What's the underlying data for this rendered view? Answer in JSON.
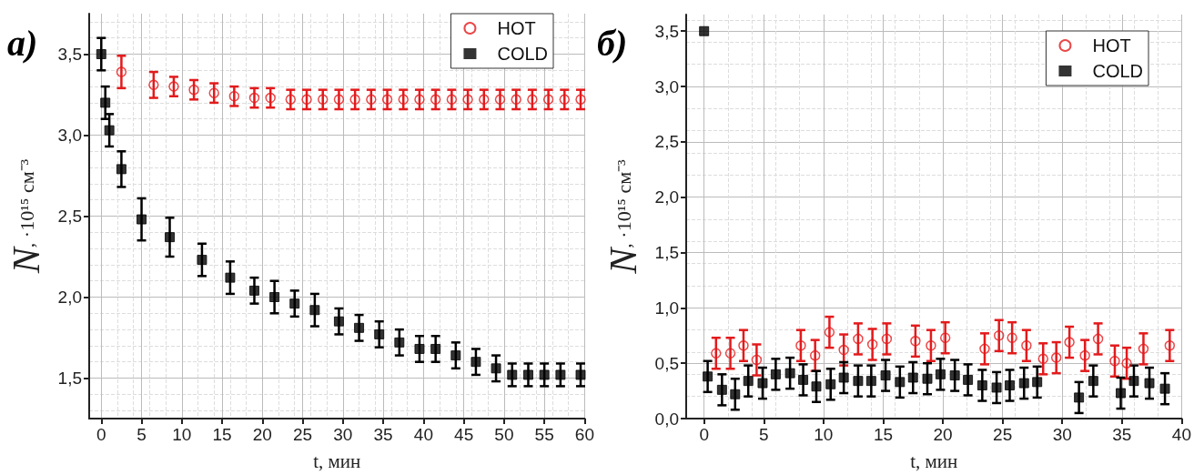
{
  "chart_data": [
    {
      "type": "scatter",
      "annotations": [
        "a)"
      ],
      "xlabel": "t, мин",
      "ylabel": "N, ·10¹⁵ см⁻³",
      "xlim": [
        -1.5,
        60
      ],
      "xticks": [
        0,
        5,
        10,
        15,
        20,
        25,
        30,
        35,
        40,
        45,
        50,
        55,
        60
      ],
      "ylim": [
        1.25,
        3.75
      ],
      "yticks": [
        {
          "value": 1.5,
          "label": "1,5"
        },
        {
          "value": 2.0,
          "label": "2,0"
        },
        {
          "value": 2.5,
          "label": "2,5"
        },
        {
          "value": 3.0,
          "label": "3,0"
        },
        {
          "value": 3.5,
          "label": "3,5"
        }
      ],
      "grid": true,
      "legend": "top right",
      "series": [
        {
          "name": "HOT",
          "color": "#e31a1c",
          "marker": "circle",
          "x": [
            2.5,
            6.5,
            9,
            11.5,
            14,
            16.5,
            19,
            21,
            23.5,
            25.5,
            27.5,
            29.5,
            31.5,
            33.5,
            35.5,
            37.5,
            39.5,
            41.5,
            43.5,
            45.5,
            47.5,
            49.5,
            51.5,
            53.5,
            55.5,
            57.5,
            59.5
          ],
          "values": [
            3.39,
            3.31,
            3.3,
            3.28,
            3.26,
            3.24,
            3.23,
            3.23,
            3.22,
            3.22,
            3.22,
            3.22,
            3.22,
            3.22,
            3.22,
            3.22,
            3.22,
            3.22,
            3.22,
            3.22,
            3.22,
            3.22,
            3.22,
            3.22,
            3.22,
            3.22,
            3.22
          ],
          "errors": [
            0.1,
            0.08,
            0.06,
            0.06,
            0.06,
            0.06,
            0.06,
            0.06,
            0.06,
            0.06,
            0.06,
            0.06,
            0.06,
            0.06,
            0.06,
            0.06,
            0.06,
            0.06,
            0.06,
            0.06,
            0.06,
            0.06,
            0.06,
            0.06,
            0.06,
            0.06,
            0.06
          ]
        },
        {
          "name": "COLD",
          "color": "#000000",
          "marker": "square",
          "x": [
            0,
            0.5,
            1,
            2.5,
            5,
            8.5,
            12.5,
            16,
            19,
            21.5,
            24,
            26.5,
            29.5,
            32,
            34.5,
            37,
            39.5,
            41.5,
            44,
            46.5,
            49,
            51,
            53,
            55,
            57,
            59.5
          ],
          "values": [
            3.5,
            3.2,
            3.03,
            2.79,
            2.48,
            2.37,
            2.23,
            2.12,
            2.04,
            2.0,
            1.96,
            1.92,
            1.85,
            1.81,
            1.77,
            1.72,
            1.68,
            1.68,
            1.64,
            1.6,
            1.56,
            1.52,
            1.52,
            1.52,
            1.52,
            1.52
          ],
          "errors": [
            0.1,
            0.1,
            0.1,
            0.11,
            0.13,
            0.12,
            0.1,
            0.1,
            0.08,
            0.1,
            0.08,
            0.1,
            0.08,
            0.08,
            0.08,
            0.08,
            0.08,
            0.08,
            0.08,
            0.08,
            0.08,
            0.07,
            0.07,
            0.07,
            0.07,
            0.07
          ]
        }
      ]
    },
    {
      "type": "scatter",
      "annotations": [
        "б)"
      ],
      "xlabel": "t, мин",
      "ylabel": "N, ·10¹⁵ см⁻³",
      "xlim": [
        -1.5,
        40
      ],
      "xticks": [
        0,
        5,
        10,
        15,
        20,
        25,
        30,
        35,
        40
      ],
      "ylim": [
        0,
        3.65
      ],
      "yticks": [
        {
          "value": 0,
          "label": "0,0"
        },
        {
          "value": 0.5,
          "label": "0,5"
        },
        {
          "value": 1.0,
          "label": "1,0"
        },
        {
          "value": 1.5,
          "label": "1,5"
        },
        {
          "value": 2.0,
          "label": "2,0"
        },
        {
          "value": 2.5,
          "label": "2,5"
        },
        {
          "value": 3.0,
          "label": "3,0"
        },
        {
          "value": 3.5,
          "label": "3,5"
        }
      ],
      "grid": true,
      "legend": "top right",
      "series": [
        {
          "name": "HOT",
          "color": "#e31a1c",
          "marker": "circle",
          "x": [
            1.0,
            2.2,
            3.3,
            4.4,
            8.1,
            9.3,
            10.5,
            11.7,
            12.9,
            14.1,
            15.3,
            17.7,
            19.0,
            20.2,
            23.5,
            24.7,
            25.8,
            27.0,
            28.4,
            29.5,
            30.6,
            31.9,
            33.0,
            34.4,
            35.4,
            36.8,
            39.0
          ],
          "values": [
            0.59,
            0.59,
            0.66,
            0.53,
            0.66,
            0.57,
            0.78,
            0.62,
            0.72,
            0.67,
            0.72,
            0.7,
            0.66,
            0.73,
            0.63,
            0.75,
            0.73,
            0.66,
            0.54,
            0.55,
            0.69,
            0.57,
            0.72,
            0.52,
            0.5,
            0.63,
            0.66
          ],
          "errors": [
            0.14,
            0.14,
            0.14,
            0.14,
            0.14,
            0.14,
            0.14,
            0.14,
            0.14,
            0.14,
            0.14,
            0.14,
            0.14,
            0.14,
            0.14,
            0.14,
            0.14,
            0.14,
            0.14,
            0.14,
            0.14,
            0.14,
            0.14,
            0.14,
            0.14,
            0.14,
            0.14
          ]
        },
        {
          "name": "COLD",
          "color": "#000000",
          "marker": "square",
          "x": [
            0,
            0.3,
            1.5,
            2.6,
            3.7,
            4.9,
            6.0,
            7.2,
            8.3,
            9.4,
            10.6,
            11.7,
            12.9,
            14.0,
            15.2,
            16.4,
            17.5,
            18.7,
            19.8,
            21.0,
            22.1,
            23.3,
            24.5,
            25.6,
            26.8,
            27.9,
            31.4,
            32.6,
            34.9,
            36.0,
            37.3,
            38.6
          ],
          "values": [
            3.5,
            0.38,
            0.26,
            0.22,
            0.34,
            0.32,
            0.4,
            0.41,
            0.35,
            0.29,
            0.31,
            0.37,
            0.34,
            0.34,
            0.39,
            0.33,
            0.37,
            0.36,
            0.4,
            0.39,
            0.35,
            0.3,
            0.28,
            0.3,
            0.32,
            0.33,
            0.19,
            0.34,
            0.23,
            0.34,
            0.32,
            0.27
          ],
          "errors": [
            null,
            0.14,
            0.14,
            0.14,
            0.14,
            0.14,
            0.14,
            0.14,
            0.14,
            0.14,
            0.14,
            0.14,
            0.14,
            0.14,
            0.14,
            0.14,
            0.14,
            0.14,
            0.14,
            0.14,
            0.14,
            0.14,
            0.14,
            0.14,
            0.14,
            0.14,
            0.14,
            0.14,
            0.14,
            0.14,
            0.14,
            0.14
          ]
        }
      ]
    }
  ]
}
